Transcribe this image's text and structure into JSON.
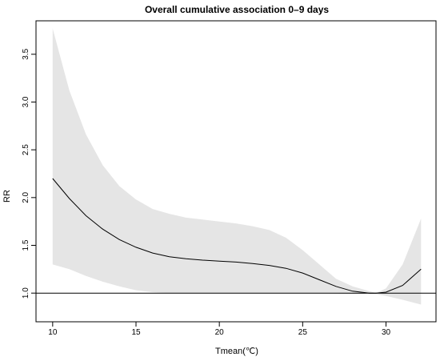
{
  "chart_data": {
    "type": "line",
    "title": "Overall cumulative association 0–9 days",
    "xlabel": "Tmean(℃)",
    "ylabel": "RR",
    "xlim": [
      9,
      33
    ],
    "ylim": [
      0.7,
      3.85
    ],
    "x_ticks": [
      10,
      15,
      20,
      25,
      30
    ],
    "y_ticks": [
      1.0,
      1.5,
      2.0,
      2.5,
      3.0,
      3.5
    ],
    "reference_line": 1.0,
    "grid": false,
    "legend": "none",
    "colors": {
      "line": "#000000",
      "band": "#e5e5e5",
      "axis": "#000000"
    },
    "series": [
      {
        "x": [
          10,
          11,
          12,
          13,
          14,
          15,
          16,
          17,
          18,
          19,
          20,
          21,
          22,
          23,
          24,
          25,
          26,
          27,
          28,
          29,
          29.4,
          30,
          31,
          32.1
        ],
        "y": [
          2.2,
          1.99,
          1.81,
          1.67,
          1.56,
          1.48,
          1.42,
          1.38,
          1.36,
          1.345,
          1.335,
          1.325,
          1.31,
          1.29,
          1.26,
          1.21,
          1.14,
          1.07,
          1.02,
          1.0,
          1.0,
          1.01,
          1.08,
          1.25
        ],
        "lower": [
          1.3,
          1.25,
          1.18,
          1.12,
          1.07,
          1.03,
          1.01,
          1.0,
          1.0,
          1.0,
          1.0,
          1.0,
          1.0,
          1.0,
          1.0,
          1.0,
          1.0,
          0.995,
          0.99,
          0.99,
          0.99,
          0.97,
          0.93,
          0.88
        ],
        "upper": [
          3.77,
          3.12,
          2.66,
          2.34,
          2.12,
          1.98,
          1.88,
          1.83,
          1.79,
          1.77,
          1.75,
          1.73,
          1.7,
          1.66,
          1.58,
          1.45,
          1.3,
          1.15,
          1.07,
          1.02,
          1.0,
          1.05,
          1.3,
          1.78
        ]
      }
    ]
  }
}
